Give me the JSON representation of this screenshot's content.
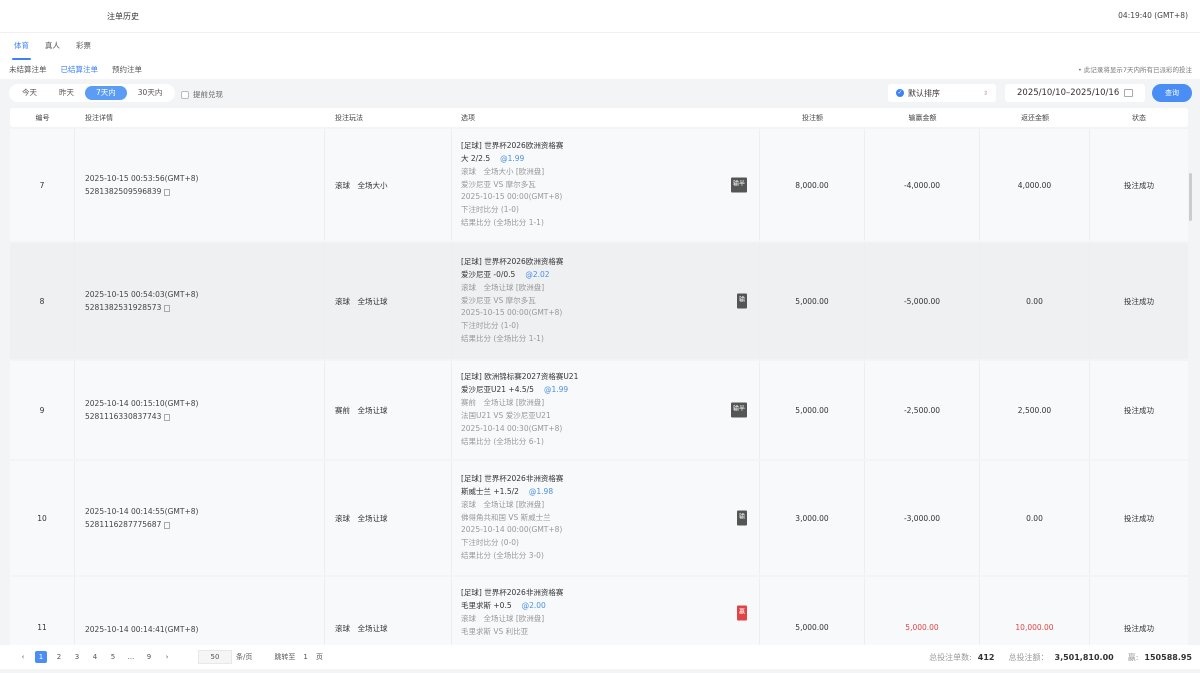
{
  "header": {
    "title": "注单历史",
    "clock": "04:19:40 (GMT+8)"
  },
  "tabs": [
    {
      "label": "体育",
      "active": true
    },
    {
      "label": "真人"
    },
    {
      "label": "彩票"
    }
  ],
  "subtabs": [
    {
      "label": "未结算注单"
    },
    {
      "label": "已结算注单",
      "active": true
    },
    {
      "label": "预约注单"
    }
  ],
  "note": "• 此记录将显示7天内所有已派彩的投注",
  "filters": {
    "ranges": [
      {
        "label": "今天"
      },
      {
        "label": "昨天"
      },
      {
        "label": "7天内",
        "active": true
      },
      {
        "label": "30天内"
      }
    ],
    "early_cashout": "提前兑现",
    "sort": "默认排序",
    "date_range": "2025/10/10–2025/10/16",
    "query": "查询"
  },
  "columns": [
    "编号",
    "投注详情",
    "投注玩法",
    "选项",
    "投注额",
    "输赢金额",
    "返还金额",
    "状态"
  ],
  "colors": {
    "accent": "#4a8ef5",
    "win": "#e04545",
    "lose_badge": "#555555"
  },
  "rows": [
    {
      "no": "7",
      "time": "2025-10-15 00:53:56(GMT+8)",
      "id": "5281382509596839",
      "play": "滚球　全场大小",
      "league": "[足球] 世界杯2026欧洲资格赛",
      "pick": "大 2/2.5",
      "odds": "@1.99",
      "lines": [
        "滚球　全场大小 [欧洲盘]",
        "爱沙尼亚 VS 摩尔多瓦",
        "2025-10-15 00:00(GMT+8)",
        "下注时比分 (1-0)",
        "结果比分 (全场比分 1-1)"
      ],
      "badge": "输半",
      "stake": "8,000.00",
      "winloss": "-4,000.00",
      "return": "4,000.00",
      "status": "投注成功"
    },
    {
      "no": "8",
      "time": "2025-10-15 00:54:03(GMT+8)",
      "id": "5281382531928573",
      "play": "滚球　全场让球",
      "league": "[足球] 世界杯2026欧洲资格赛",
      "pick": "爱沙尼亚 -0/0.5",
      "odds": "@2.02",
      "lines": [
        "滚球　全场让球 [欧洲盘]",
        "爱沙尼亚 VS 摩尔多瓦",
        "2025-10-15 00:00(GMT+8)",
        "下注时比分 (1-0)",
        "结果比分 (全场比分 1-1)"
      ],
      "badge": "输",
      "stake": "5,000.00",
      "winloss": "-5,000.00",
      "return": "0.00",
      "status": "投注成功"
    },
    {
      "no": "9",
      "time": "2025-10-14 00:15:10(GMT+8)",
      "id": "5281116330837743",
      "play": "赛前　全场让球",
      "league": "[足球] 欧洲锦标赛2027资格赛U21",
      "pick": "爱沙尼亚U21 +4.5/5",
      "odds": "@1.99",
      "lines": [
        "赛前　全场让球 [欧洲盘]",
        "法国U21 VS 爱沙尼亚U21",
        "2025-10-14 00:30(GMT+8)",
        "结果比分 (全场比分 6-1)"
      ],
      "badge": "输半",
      "stake": "5,000.00",
      "winloss": "-2,500.00",
      "return": "2,500.00",
      "status": "投注成功"
    },
    {
      "no": "10",
      "time": "2025-10-14 00:14:55(GMT+8)",
      "id": "5281116287775687",
      "play": "滚球　全场让球",
      "league": "[足球] 世界杯2026非洲资格赛",
      "pick": "斯威士兰 +1.5/2",
      "odds": "@1.98",
      "lines": [
        "滚球　全场让球 [欧洲盘]",
        "佛得角共和国 VS 斯威士兰",
        "2025-10-14 00:00(GMT+8)",
        "下注时比分 (0-0)",
        "结果比分 (全场比分 3-0)"
      ],
      "badge": "输",
      "stake": "3,000.00",
      "winloss": "-3,000.00",
      "return": "0.00",
      "status": "投注成功"
    },
    {
      "no": "11",
      "time": "2025-10-14 00:14:41(GMT+8)",
      "id": "",
      "play": "滚球　全场让球",
      "league": "[足球] 世界杯2026非洲资格赛",
      "pick": "毛里求斯 +0.5",
      "odds": "@2.00",
      "lines": [
        "滚球　全场让球 [欧洲盘]",
        "毛里求斯 VS 利比亚"
      ],
      "badge": "赢",
      "win": true,
      "stake": "5,000.00",
      "winloss": "5,000.00",
      "return": "10,000.00",
      "status": "投注成功"
    }
  ],
  "pagination": {
    "pages": [
      "1",
      "2",
      "3",
      "4",
      "5",
      "...",
      "9"
    ],
    "current": "1",
    "page_size": "50",
    "page_size_unit": "条/页",
    "jump_label": "跳转至",
    "jump_value": "1",
    "jump_unit": "页"
  },
  "totals": {
    "count_label": "总投注单数:",
    "count": "412",
    "amount_label": "总投注额：",
    "amount": "3,501,810.00",
    "win_label": "赢:",
    "win": "150588.95"
  }
}
